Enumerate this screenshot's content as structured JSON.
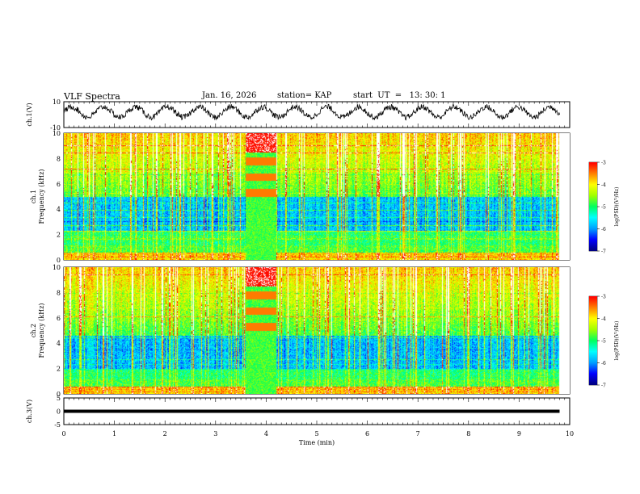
{
  "header": {
    "title": "VLF Spectra",
    "date": "Jan. 16, 2026",
    "station": "station= KAP",
    "start": "start  UT  =   13: 30: 1"
  },
  "chart_data": {
    "type": "heatmap",
    "x": {
      "label": "Time  (min)",
      "range": [
        0,
        10
      ],
      "ticks": [
        "0",
        "1",
        "2",
        "3",
        "4",
        "5",
        "6",
        "7",
        "8",
        "9",
        "10"
      ]
    },
    "panels": [
      {
        "id": "ch1-waveform",
        "type": "line",
        "ylabel": "ch.1(V)",
        "ylim": [
          -10,
          10
        ],
        "yticks": [
          "10",
          "-10"
        ],
        "trace": {
          "description": "noisy oscillating waveform, approx. period 0.6 min",
          "mean": 2,
          "amplitude": 5,
          "period_min": 0.63,
          "data_end_min": 9.8,
          "color": "#000000"
        }
      },
      {
        "id": "ch1-spectrogram",
        "type": "heatmap",
        "ylabel_top": "ch.1",
        "ylabel": "Frequency  (kHz)",
        "ylim": [
          0,
          10
        ],
        "yticks": [
          "0",
          "2",
          "4",
          "6",
          "8",
          "10"
        ],
        "data_end_min": 9.8,
        "gap_interval_min": [
          3.6,
          4.2
        ],
        "quiet_band_khz": [
          2.3,
          5.0
        ],
        "strong_band_khz": [
          5.0,
          10.0
        ],
        "colorbar": {
          "label": "log(PSD)(V²/Hz)",
          "range": [
            -7,
            -3
          ],
          "ticks": [
            "-3",
            "-4",
            "-5",
            "-6",
            "-7"
          ]
        }
      },
      {
        "id": "ch2-spectrogram",
        "type": "heatmap",
        "ylabel_top": "ch.2",
        "ylabel": "Frequency  (kHz)",
        "ylim": [
          0,
          10
        ],
        "yticks": [
          "0",
          "2",
          "4",
          "6",
          "8",
          "10"
        ],
        "data_end_min": 9.8,
        "gap_interval_min": [
          3.6,
          4.2
        ],
        "quiet_band_khz": [
          2.0,
          4.6
        ],
        "strong_band_khz": [
          4.6,
          10.0
        ],
        "colorbar": {
          "label": "log(PSD)(V²/Hz)",
          "range": [
            -7,
            -3
          ],
          "ticks": [
            "-3",
            "-4",
            "-5",
            "-6",
            "-7"
          ]
        }
      },
      {
        "id": "ch3-waveform",
        "type": "line",
        "ylabel": "ch.3(V)",
        "ylim": [
          -5,
          5
        ],
        "yticks": [
          "5",
          "0",
          "-5"
        ],
        "trace": {
          "description": "dense thick flat band",
          "center": 0,
          "half_width": 0.6,
          "data_end_min": 9.8,
          "color": "#000000"
        }
      }
    ],
    "colormap": [
      "#000080",
      "#0000ff",
      "#00a0ff",
      "#00ffff",
      "#00ff60",
      "#a0ff00",
      "#ffff00",
      "#ff8000",
      "#ff0000",
      "#ffffff"
    ]
  }
}
